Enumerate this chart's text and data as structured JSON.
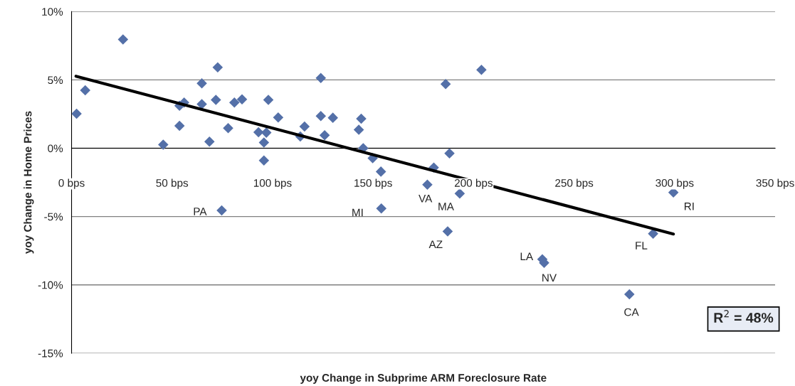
{
  "chart_data": {
    "type": "scatter",
    "xlabel": "yoy Change in Subprime ARM Foreclosure Rate",
    "ylabel": "yoy Change in Home Prices",
    "xlim": [
      0,
      350
    ],
    "ylim": [
      -15,
      10
    ],
    "xticks": [
      {
        "value": 0,
        "label": "0 bps"
      },
      {
        "value": 50,
        "label": "50 bps"
      },
      {
        "value": 100,
        "label": "100 bps"
      },
      {
        "value": 150,
        "label": "150 bps"
      },
      {
        "value": 200,
        "label": "200 bps"
      },
      {
        "value": 250,
        "label": "250 bps"
      },
      {
        "value": 300,
        "label": "300 bps"
      },
      {
        "value": 350,
        "label": "350 bps"
      }
    ],
    "yticks": [
      {
        "value": -15,
        "label": "-15%"
      },
      {
        "value": -10,
        "label": "-10%"
      },
      {
        "value": -5,
        "label": "-5%"
      },
      {
        "value": 0,
        "label": "0%"
      },
      {
        "value": 5,
        "label": "5%"
      },
      {
        "value": 10,
        "label": "10%"
      }
    ],
    "grid": "y",
    "marker": "diamond",
    "series": [
      {
        "color": "#5470a8",
        "x": [
          2.5,
          6.8,
          25.6,
          45.6,
          53.7,
          56.0,
          53.7,
          64.8,
          64.8,
          68.6,
          71.8,
          72.7,
          77.9,
          81.0,
          84.8,
          93.0,
          96.9,
          95.7,
          95.7,
          97.9,
          102.8,
          113.8,
          115.9,
          124.0,
          124.0,
          125.9,
          130.0,
          142.9,
          144.1,
          145.1,
          149.8,
          153.9,
          203.9,
          186.1,
          188.0,
          180.2,
          177.0,
          193.1,
          154.1,
          187.1,
          234.2,
          74.7,
          235.1,
          299.4,
          289.3,
          277.5
        ],
        "values": [
          2.52,
          4.24,
          7.96,
          0.26,
          3.11,
          3.34,
          1.64,
          4.75,
          3.23,
          0.48,
          3.54,
          5.92,
          1.47,
          3.34,
          3.58,
          1.17,
          1.14,
          0.42,
          -0.9,
          3.54,
          2.25,
          0.86,
          1.59,
          5.14,
          2.35,
          0.95,
          2.23,
          1.35,
          2.16,
          0,
          -0.73,
          -1.71,
          5.74,
          4.7,
          -0.38,
          -1.42,
          -2.67,
          -3.32,
          -4.41,
          -6.09,
          -8.13,
          -4.55,
          -8.39,
          -3.24,
          -6.25,
          -10.69
        ]
      },
      {
        "type": "line",
        "color": "#000000",
        "marker": "none",
        "x": [
          2.2,
          299.4
        ],
        "values": [
          5.27,
          -6.28
        ]
      }
    ],
    "annotations": [
      {
        "text": "VA",
        "x": 177.0,
        "y": -2.67
      },
      {
        "text": "MA",
        "x": 193.1,
        "y": -3.32
      },
      {
        "text": "MI",
        "x": 154.1,
        "y": -4.41
      },
      {
        "text": "AZ",
        "x": 187.1,
        "y": -6.09
      },
      {
        "text": "LA",
        "x": 234.2,
        "y": -8.13
      },
      {
        "text": "PA",
        "x": 74.7,
        "y": -4.55
      },
      {
        "text": "NV",
        "x": 235.1,
        "y": -8.39
      },
      {
        "text": "RI",
        "x": 299.4,
        "y": -3.24
      },
      {
        "text": "FL",
        "x": 289.3,
        "y": -6.25
      },
      {
        "text": "CA",
        "x": 277.5,
        "y": -10.69
      },
      "R$^{2}$ = 48%"
    ]
  }
}
